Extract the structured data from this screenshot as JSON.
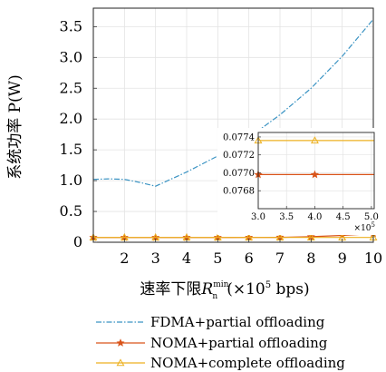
{
  "chart_data": {
    "type": "line",
    "xlabel": "速率下限",
    "xlabel_symbol": "R",
    "xlabel_sub": "n",
    "xlabel_sup": "min",
    "xlabel_unit_open": "(×10",
    "xlabel_unit_exp": "5",
    "xlabel_unit_close": " bps)",
    "ylabel": "系统功率 P(W)",
    "xlim": [
      1,
      10
    ],
    "ylim": [
      0,
      3.8
    ],
    "xticks": [
      2,
      3,
      4,
      5,
      6,
      7,
      8,
      9,
      10
    ],
    "yticks": [
      0,
      0.5,
      1.0,
      1.5,
      2.0,
      2.5,
      3.0,
      3.5
    ],
    "ytick_labels": [
      "0",
      "0.5",
      "1.0",
      "1.5",
      "2.0",
      "2.5",
      "3.0",
      "3.5"
    ],
    "grid": true,
    "legend_position": "bottom",
    "series": [
      {
        "name": "FDMA+partial offloading",
        "color": "#3a93c3",
        "style": "dashdot",
        "marker": "none",
        "x": [
          1,
          1.5,
          2,
          2.5,
          3,
          4,
          5,
          6,
          7,
          8,
          9,
          10
        ],
        "y": [
          1.02,
          1.03,
          1.02,
          0.97,
          0.91,
          1.14,
          1.4,
          1.7,
          2.07,
          2.5,
          3.02,
          3.62
        ]
      },
      {
        "name": "NOMA+partial offloading",
        "color": "#d9541a",
        "style": "solid",
        "marker": "star",
        "x": [
          1,
          2,
          3,
          4,
          5,
          6,
          7,
          8,
          9,
          10
        ],
        "y": [
          0.077,
          0.077,
          0.077,
          0.077,
          0.077,
          0.078,
          0.08,
          0.09,
          0.11,
          0.14
        ]
      },
      {
        "name": "NOMA+complete offloading",
        "color": "#edb120",
        "style": "solid",
        "marker": "triangle",
        "x": [
          1,
          2,
          3,
          4,
          5,
          6,
          7,
          8,
          9,
          10
        ],
        "y": [
          0.0774,
          0.0774,
          0.0774,
          0.0774,
          0.0774,
          0.0774,
          0.0774,
          0.0774,
          0.0774,
          0.0774
        ]
      }
    ],
    "inset": {
      "xlim": [
        3.0,
        5.05
      ],
      "ylim": [
        0.0766,
        0.07745
      ],
      "xticks": [
        3.0,
        3.5,
        4.0,
        4.5,
        5.0
      ],
      "xtick_labels": [
        "3.0",
        "3.5",
        "4.0",
        "4.5",
        "5.0"
      ],
      "yticks": [
        0.0768,
        0.077,
        0.0772,
        0.0774
      ],
      "ytick_labels": [
        "0.0768",
        "0.0770",
        "0.0772",
        "0.0774"
      ],
      "x_multiplier_base": "×10",
      "x_multiplier_exp": "5",
      "series": [
        {
          "name": "NOMA+partial offloading",
          "color": "#d9541a",
          "marker": "star",
          "x": [
            3.0,
            4.0,
            5.05
          ],
          "y": [
            0.07698,
            0.07698,
            0.07698
          ]
        },
        {
          "name": "NOMA+complete offloading",
          "color": "#edb120",
          "marker": "triangle",
          "x": [
            3.0,
            4.0,
            5.05
          ],
          "y": [
            0.07736,
            0.07736,
            0.07736
          ]
        }
      ]
    }
  }
}
